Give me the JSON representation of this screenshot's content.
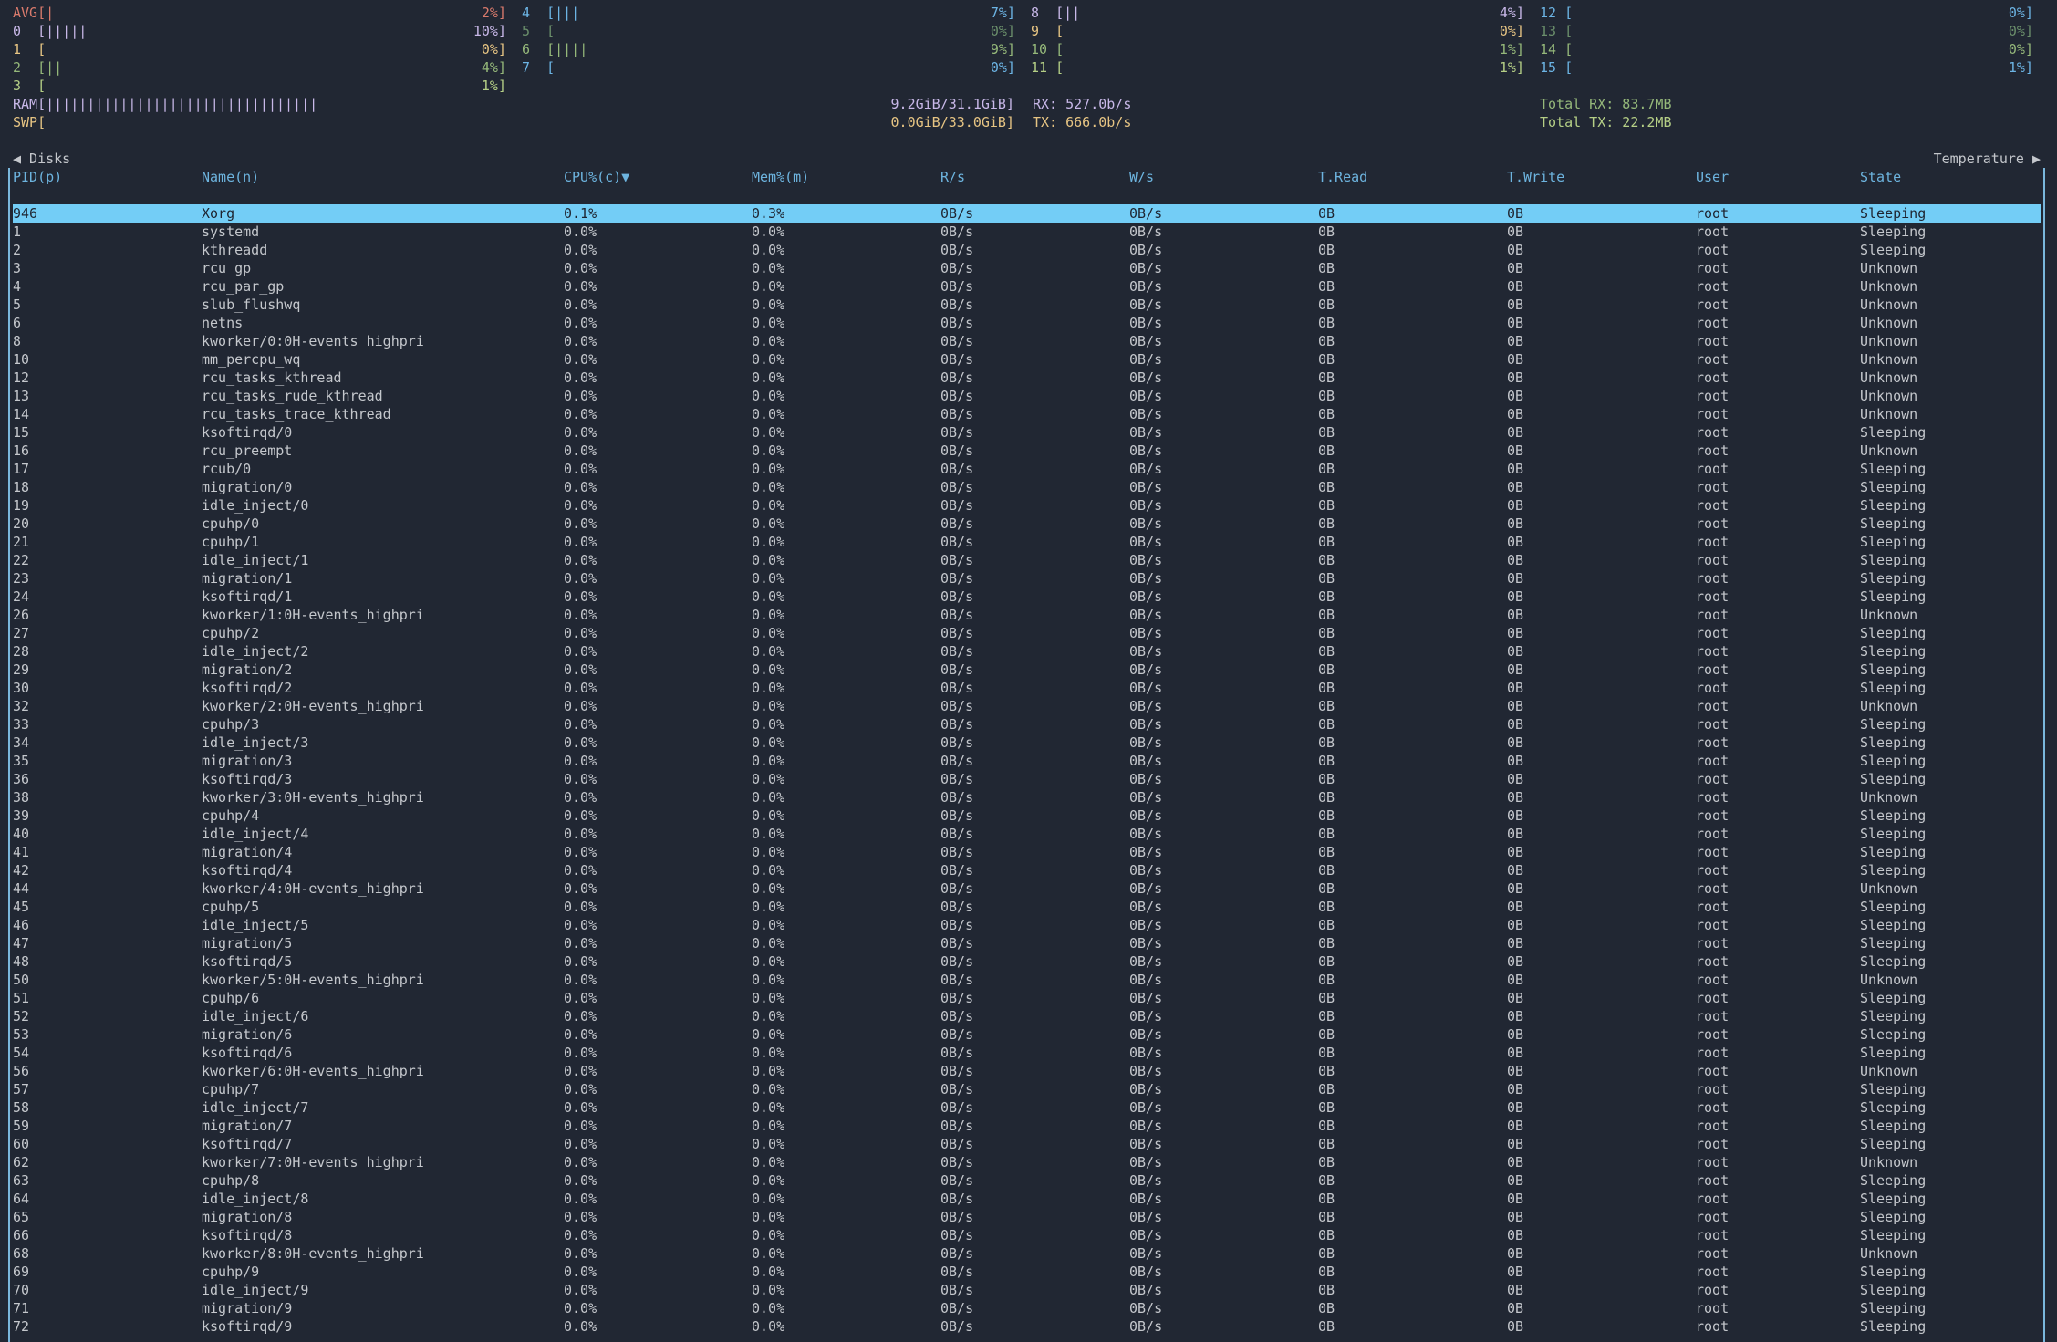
{
  "colors": {
    "background": "#212733",
    "text": "#c4c7cc",
    "header": "#6db4df",
    "selected_row_bg": "#73cdf6",
    "border": "#7ab7dc"
  },
  "cpus": [
    {
      "label": "AVG",
      "percent": 2,
      "color": "#d97a6c"
    },
    {
      "label": "0",
      "percent": 10,
      "color": "#c8b8e8"
    },
    {
      "label": "1",
      "percent": 0,
      "color": "#e6c483"
    },
    {
      "label": "2",
      "percent": 4,
      "color": "#95b87a"
    },
    {
      "label": "3",
      "percent": 1,
      "color": "#b5cf86"
    },
    {
      "label": "4",
      "percent": 7,
      "color": "#6cb4e4"
    },
    {
      "label": "5",
      "percent": 0,
      "color": "#6b8f6b"
    },
    {
      "label": "6",
      "percent": 9,
      "color": "#95b87a"
    },
    {
      "label": "7",
      "percent": 0,
      "color": "#6cb4e4"
    },
    {
      "label": "8",
      "percent": 4,
      "color": "#c8b8e8"
    },
    {
      "label": "9",
      "percent": 0,
      "color": "#e6c483"
    },
    {
      "label": "10",
      "percent": 1,
      "color": "#95b87a"
    },
    {
      "label": "11",
      "percent": 1,
      "color": "#b5cf86"
    },
    {
      "label": "12",
      "percent": 0,
      "color": "#6cb4e4"
    },
    {
      "label": "13",
      "percent": 0,
      "color": "#6b8f6b"
    },
    {
      "label": "14",
      "percent": 0,
      "color": "#95b87a"
    },
    {
      "label": "15",
      "percent": 1,
      "color": "#6cb4e4"
    }
  ],
  "memory": {
    "ram": {
      "label": "RAM",
      "bars": 33,
      "value": "9.2GiB/31.1GiB]",
      "color": "#c8b8e8"
    },
    "swap": {
      "label": "SWP",
      "bars": 0,
      "value": "0.0GiB/33.0GiB]",
      "color": "#e6c483"
    }
  },
  "network": {
    "rx": "RX: 527.0b/s",
    "tx": "TX: 666.0b/s",
    "total_rx": "Total RX: 83.7MB",
    "total_tx": "Total TX: 22.2MB"
  },
  "tabs": {
    "prev": "◀ Disks",
    "next": "Temperature ▶"
  },
  "table": {
    "columns": [
      "PID(p)",
      "Name(n)",
      "CPU%(c)▼",
      "Mem%(m)",
      "R/s",
      "W/s",
      "T.Read",
      "T.Write",
      "User",
      "State"
    ],
    "selected_index": 0,
    "rows": [
      [
        "946",
        "Xorg",
        "0.1%",
        "0.3%",
        "0B/s",
        "0B/s",
        "0B",
        "0B",
        "root",
        "Sleeping"
      ],
      [
        "1",
        "systemd",
        "0.0%",
        "0.0%",
        "0B/s",
        "0B/s",
        "0B",
        "0B",
        "root",
        "Sleeping"
      ],
      [
        "2",
        "kthreadd",
        "0.0%",
        "0.0%",
        "0B/s",
        "0B/s",
        "0B",
        "0B",
        "root",
        "Sleeping"
      ],
      [
        "3",
        "rcu_gp",
        "0.0%",
        "0.0%",
        "0B/s",
        "0B/s",
        "0B",
        "0B",
        "root",
        "Unknown"
      ],
      [
        "4",
        "rcu_par_gp",
        "0.0%",
        "0.0%",
        "0B/s",
        "0B/s",
        "0B",
        "0B",
        "root",
        "Unknown"
      ],
      [
        "5",
        "slub_flushwq",
        "0.0%",
        "0.0%",
        "0B/s",
        "0B/s",
        "0B",
        "0B",
        "root",
        "Unknown"
      ],
      [
        "6",
        "netns",
        "0.0%",
        "0.0%",
        "0B/s",
        "0B/s",
        "0B",
        "0B",
        "root",
        "Unknown"
      ],
      [
        "8",
        "kworker/0:0H-events_highpri",
        "0.0%",
        "0.0%",
        "0B/s",
        "0B/s",
        "0B",
        "0B",
        "root",
        "Unknown"
      ],
      [
        "10",
        "mm_percpu_wq",
        "0.0%",
        "0.0%",
        "0B/s",
        "0B/s",
        "0B",
        "0B",
        "root",
        "Unknown"
      ],
      [
        "12",
        "rcu_tasks_kthread",
        "0.0%",
        "0.0%",
        "0B/s",
        "0B/s",
        "0B",
        "0B",
        "root",
        "Unknown"
      ],
      [
        "13",
        "rcu_tasks_rude_kthread",
        "0.0%",
        "0.0%",
        "0B/s",
        "0B/s",
        "0B",
        "0B",
        "root",
        "Unknown"
      ],
      [
        "14",
        "rcu_tasks_trace_kthread",
        "0.0%",
        "0.0%",
        "0B/s",
        "0B/s",
        "0B",
        "0B",
        "root",
        "Unknown"
      ],
      [
        "15",
        "ksoftirqd/0",
        "0.0%",
        "0.0%",
        "0B/s",
        "0B/s",
        "0B",
        "0B",
        "root",
        "Sleeping"
      ],
      [
        "16",
        "rcu_preempt",
        "0.0%",
        "0.0%",
        "0B/s",
        "0B/s",
        "0B",
        "0B",
        "root",
        "Unknown"
      ],
      [
        "17",
        "rcub/0",
        "0.0%",
        "0.0%",
        "0B/s",
        "0B/s",
        "0B",
        "0B",
        "root",
        "Sleeping"
      ],
      [
        "18",
        "migration/0",
        "0.0%",
        "0.0%",
        "0B/s",
        "0B/s",
        "0B",
        "0B",
        "root",
        "Sleeping"
      ],
      [
        "19",
        "idle_inject/0",
        "0.0%",
        "0.0%",
        "0B/s",
        "0B/s",
        "0B",
        "0B",
        "root",
        "Sleeping"
      ],
      [
        "20",
        "cpuhp/0",
        "0.0%",
        "0.0%",
        "0B/s",
        "0B/s",
        "0B",
        "0B",
        "root",
        "Sleeping"
      ],
      [
        "21",
        "cpuhp/1",
        "0.0%",
        "0.0%",
        "0B/s",
        "0B/s",
        "0B",
        "0B",
        "root",
        "Sleeping"
      ],
      [
        "22",
        "idle_inject/1",
        "0.0%",
        "0.0%",
        "0B/s",
        "0B/s",
        "0B",
        "0B",
        "root",
        "Sleeping"
      ],
      [
        "23",
        "migration/1",
        "0.0%",
        "0.0%",
        "0B/s",
        "0B/s",
        "0B",
        "0B",
        "root",
        "Sleeping"
      ],
      [
        "24",
        "ksoftirqd/1",
        "0.0%",
        "0.0%",
        "0B/s",
        "0B/s",
        "0B",
        "0B",
        "root",
        "Sleeping"
      ],
      [
        "26",
        "kworker/1:0H-events_highpri",
        "0.0%",
        "0.0%",
        "0B/s",
        "0B/s",
        "0B",
        "0B",
        "root",
        "Unknown"
      ],
      [
        "27",
        "cpuhp/2",
        "0.0%",
        "0.0%",
        "0B/s",
        "0B/s",
        "0B",
        "0B",
        "root",
        "Sleeping"
      ],
      [
        "28",
        "idle_inject/2",
        "0.0%",
        "0.0%",
        "0B/s",
        "0B/s",
        "0B",
        "0B",
        "root",
        "Sleeping"
      ],
      [
        "29",
        "migration/2",
        "0.0%",
        "0.0%",
        "0B/s",
        "0B/s",
        "0B",
        "0B",
        "root",
        "Sleeping"
      ],
      [
        "30",
        "ksoftirqd/2",
        "0.0%",
        "0.0%",
        "0B/s",
        "0B/s",
        "0B",
        "0B",
        "root",
        "Sleeping"
      ],
      [
        "32",
        "kworker/2:0H-events_highpri",
        "0.0%",
        "0.0%",
        "0B/s",
        "0B/s",
        "0B",
        "0B",
        "root",
        "Unknown"
      ],
      [
        "33",
        "cpuhp/3",
        "0.0%",
        "0.0%",
        "0B/s",
        "0B/s",
        "0B",
        "0B",
        "root",
        "Sleeping"
      ],
      [
        "34",
        "idle_inject/3",
        "0.0%",
        "0.0%",
        "0B/s",
        "0B/s",
        "0B",
        "0B",
        "root",
        "Sleeping"
      ],
      [
        "35",
        "migration/3",
        "0.0%",
        "0.0%",
        "0B/s",
        "0B/s",
        "0B",
        "0B",
        "root",
        "Sleeping"
      ],
      [
        "36",
        "ksoftirqd/3",
        "0.0%",
        "0.0%",
        "0B/s",
        "0B/s",
        "0B",
        "0B",
        "root",
        "Sleeping"
      ],
      [
        "38",
        "kworker/3:0H-events_highpri",
        "0.0%",
        "0.0%",
        "0B/s",
        "0B/s",
        "0B",
        "0B",
        "root",
        "Unknown"
      ],
      [
        "39",
        "cpuhp/4",
        "0.0%",
        "0.0%",
        "0B/s",
        "0B/s",
        "0B",
        "0B",
        "root",
        "Sleeping"
      ],
      [
        "40",
        "idle_inject/4",
        "0.0%",
        "0.0%",
        "0B/s",
        "0B/s",
        "0B",
        "0B",
        "root",
        "Sleeping"
      ],
      [
        "41",
        "migration/4",
        "0.0%",
        "0.0%",
        "0B/s",
        "0B/s",
        "0B",
        "0B",
        "root",
        "Sleeping"
      ],
      [
        "42",
        "ksoftirqd/4",
        "0.0%",
        "0.0%",
        "0B/s",
        "0B/s",
        "0B",
        "0B",
        "root",
        "Sleeping"
      ],
      [
        "44",
        "kworker/4:0H-events_highpri",
        "0.0%",
        "0.0%",
        "0B/s",
        "0B/s",
        "0B",
        "0B",
        "root",
        "Unknown"
      ],
      [
        "45",
        "cpuhp/5",
        "0.0%",
        "0.0%",
        "0B/s",
        "0B/s",
        "0B",
        "0B",
        "root",
        "Sleeping"
      ],
      [
        "46",
        "idle_inject/5",
        "0.0%",
        "0.0%",
        "0B/s",
        "0B/s",
        "0B",
        "0B",
        "root",
        "Sleeping"
      ],
      [
        "47",
        "migration/5",
        "0.0%",
        "0.0%",
        "0B/s",
        "0B/s",
        "0B",
        "0B",
        "root",
        "Sleeping"
      ],
      [
        "48",
        "ksoftirqd/5",
        "0.0%",
        "0.0%",
        "0B/s",
        "0B/s",
        "0B",
        "0B",
        "root",
        "Sleeping"
      ],
      [
        "50",
        "kworker/5:0H-events_highpri",
        "0.0%",
        "0.0%",
        "0B/s",
        "0B/s",
        "0B",
        "0B",
        "root",
        "Unknown"
      ],
      [
        "51",
        "cpuhp/6",
        "0.0%",
        "0.0%",
        "0B/s",
        "0B/s",
        "0B",
        "0B",
        "root",
        "Sleeping"
      ],
      [
        "52",
        "idle_inject/6",
        "0.0%",
        "0.0%",
        "0B/s",
        "0B/s",
        "0B",
        "0B",
        "root",
        "Sleeping"
      ],
      [
        "53",
        "migration/6",
        "0.0%",
        "0.0%",
        "0B/s",
        "0B/s",
        "0B",
        "0B",
        "root",
        "Sleeping"
      ],
      [
        "54",
        "ksoftirqd/6",
        "0.0%",
        "0.0%",
        "0B/s",
        "0B/s",
        "0B",
        "0B",
        "root",
        "Sleeping"
      ],
      [
        "56",
        "kworker/6:0H-events_highpri",
        "0.0%",
        "0.0%",
        "0B/s",
        "0B/s",
        "0B",
        "0B",
        "root",
        "Unknown"
      ],
      [
        "57",
        "cpuhp/7",
        "0.0%",
        "0.0%",
        "0B/s",
        "0B/s",
        "0B",
        "0B",
        "root",
        "Sleeping"
      ],
      [
        "58",
        "idle_inject/7",
        "0.0%",
        "0.0%",
        "0B/s",
        "0B/s",
        "0B",
        "0B",
        "root",
        "Sleeping"
      ],
      [
        "59",
        "migration/7",
        "0.0%",
        "0.0%",
        "0B/s",
        "0B/s",
        "0B",
        "0B",
        "root",
        "Sleeping"
      ],
      [
        "60",
        "ksoftirqd/7",
        "0.0%",
        "0.0%",
        "0B/s",
        "0B/s",
        "0B",
        "0B",
        "root",
        "Sleeping"
      ],
      [
        "62",
        "kworker/7:0H-events_highpri",
        "0.0%",
        "0.0%",
        "0B/s",
        "0B/s",
        "0B",
        "0B",
        "root",
        "Unknown"
      ],
      [
        "63",
        "cpuhp/8",
        "0.0%",
        "0.0%",
        "0B/s",
        "0B/s",
        "0B",
        "0B",
        "root",
        "Sleeping"
      ],
      [
        "64",
        "idle_inject/8",
        "0.0%",
        "0.0%",
        "0B/s",
        "0B/s",
        "0B",
        "0B",
        "root",
        "Sleeping"
      ],
      [
        "65",
        "migration/8",
        "0.0%",
        "0.0%",
        "0B/s",
        "0B/s",
        "0B",
        "0B",
        "root",
        "Sleeping"
      ],
      [
        "66",
        "ksoftirqd/8",
        "0.0%",
        "0.0%",
        "0B/s",
        "0B/s",
        "0B",
        "0B",
        "root",
        "Sleeping"
      ],
      [
        "68",
        "kworker/8:0H-events_highpri",
        "0.0%",
        "0.0%",
        "0B/s",
        "0B/s",
        "0B",
        "0B",
        "root",
        "Unknown"
      ],
      [
        "69",
        "cpuhp/9",
        "0.0%",
        "0.0%",
        "0B/s",
        "0B/s",
        "0B",
        "0B",
        "root",
        "Sleeping"
      ],
      [
        "70",
        "idle_inject/9",
        "0.0%",
        "0.0%",
        "0B/s",
        "0B/s",
        "0B",
        "0B",
        "root",
        "Sleeping"
      ],
      [
        "71",
        "migration/9",
        "0.0%",
        "0.0%",
        "0B/s",
        "0B/s",
        "0B",
        "0B",
        "root",
        "Sleeping"
      ],
      [
        "72",
        "ksoftirqd/9",
        "0.0%",
        "0.0%",
        "0B/s",
        "0B/s",
        "0B",
        "0B",
        "root",
        "Sleeping"
      ]
    ]
  }
}
